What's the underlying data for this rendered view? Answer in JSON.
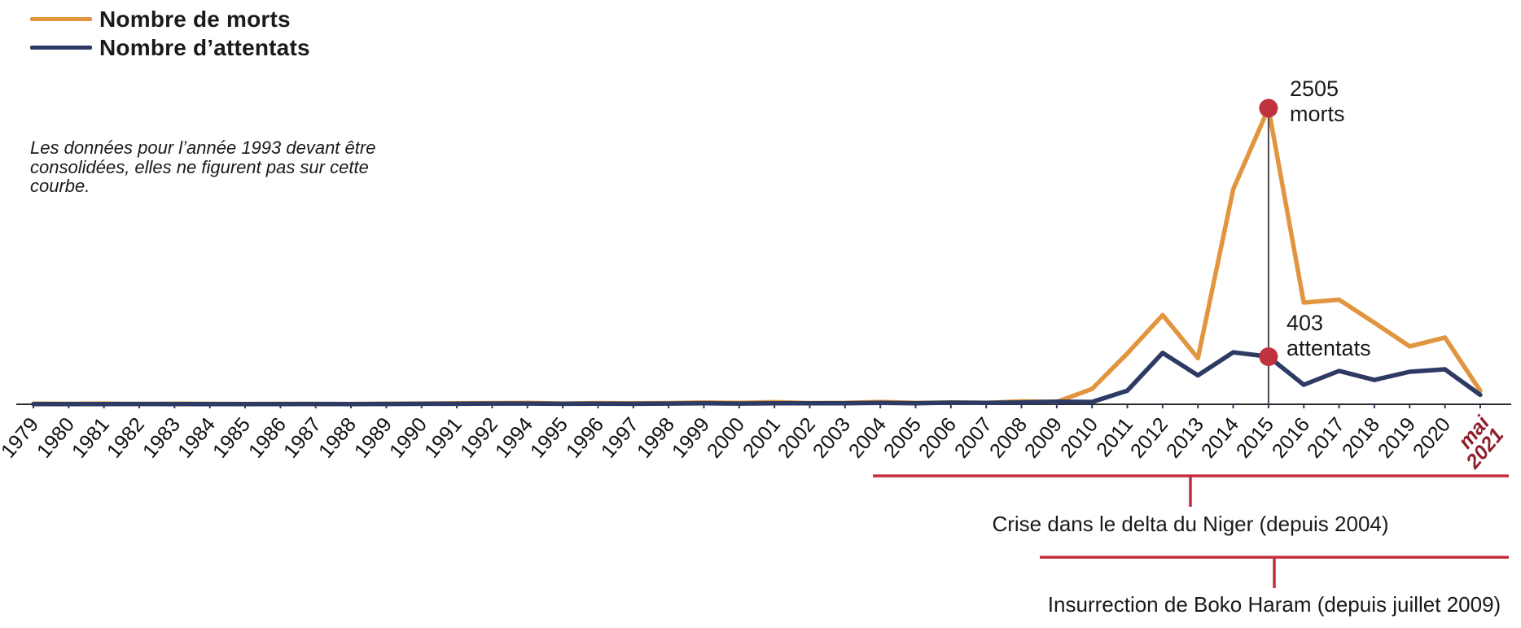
{
  "legend": {
    "items": [
      {
        "label": "Nombre de morts",
        "color": "#E2953F"
      },
      {
        "label": "Nombre d’attentats",
        "color": "#2D3A64"
      }
    ]
  },
  "note": {
    "text": "Les données pour l’année 1993 devant être consolidées, elles ne figurent pas sur cette courbe.",
    "lines": [
      "Les données pour l’année 1993 devant être",
      "consolidées, elles ne figurent pas sur cette",
      "courbe."
    ]
  },
  "annotations": {
    "peak_deaths": {
      "line1": "2505",
      "line2": "morts"
    },
    "peak_attacks": {
      "line1": "403",
      "line2": "attentats"
    }
  },
  "timeline_brackets": [
    {
      "label": "Crise dans le delta du Niger (depuis 2004)",
      "start_year": "2004",
      "color": "#C52C3B"
    },
    {
      "label": "Insurrection de Boko Haram (depuis juillet 2009)",
      "start_year": "2009",
      "color": "#C52C3B"
    }
  ],
  "colors": {
    "deaths_line": "#E2953F",
    "attacks_line": "#2D3A64",
    "highlight_dot": "#C0323E",
    "bracket_red": "#C52C3B",
    "last_label_red": "#8F1F2B",
    "axis": "#2b2b2b",
    "tick": "#2f3a60",
    "highlight_rule": "#4a4a4a"
  },
  "chart_data": {
    "type": "line",
    "x": [
      "1979",
      "1980",
      "1981",
      "1982",
      "1983",
      "1984",
      "1985",
      "1986",
      "1987",
      "1988",
      "1989",
      "1990",
      "1991",
      "1992",
      "1994",
      "1995",
      "1996",
      "1997",
      "1998",
      "1999",
      "2000",
      "2001",
      "2002",
      "2003",
      "2004",
      "2005",
      "2006",
      "2007",
      "2008",
      "2009",
      "2010",
      "2011",
      "2012",
      "2013",
      "2014",
      "2015",
      "2016",
      "2017",
      "2018",
      "2019",
      "2020",
      "mai 2021"
    ],
    "missing_year": "1993",
    "series": [
      {
        "name": "Nombre de morts",
        "color": "#E2953F",
        "values": [
          5,
          4,
          6,
          3,
          5,
          4,
          3,
          4,
          3,
          3,
          5,
          6,
          8,
          10,
          12,
          6,
          10,
          8,
          10,
          15,
          12,
          18,
          10,
          12,
          20,
          12,
          15,
          12,
          25,
          20,
          130,
          430,
          755,
          390,
          1820,
          2505,
          860,
          885,
          690,
          490,
          565,
          115
        ]
      },
      {
        "name": "Nombre d’attentats",
        "color": "#2D3A64",
        "values": [
          2,
          2,
          2,
          3,
          2,
          2,
          2,
          2,
          3,
          2,
          3,
          4,
          4,
          6,
          6,
          4,
          5,
          4,
          6,
          8,
          6,
          9,
          8,
          9,
          12,
          9,
          14,
          12,
          16,
          22,
          20,
          115,
          435,
          245,
          440,
          403,
          165,
          282,
          206,
          275,
          296,
          80
        ]
      }
    ],
    "highlights": [
      {
        "year": "2015",
        "series": "Nombre de morts",
        "value": 2505,
        "label": "2505 morts"
      },
      {
        "year": "2015",
        "series": "Nombre d’attentats",
        "value": 403,
        "label": "403 attentats"
      }
    ],
    "highlight_year_index": 35,
    "ylim": [
      0,
      2505
    ],
    "grid": false,
    "legend_position": "top-left",
    "x_tick_rotation": -50
  }
}
